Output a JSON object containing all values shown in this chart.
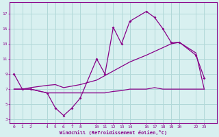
{
  "xlabel": "Windchill (Refroidissement éolien,°C)",
  "bg_color": "#d8f0f0",
  "line_color": "#880088",
  "grid_color": "#b0d8d8",
  "x_ticks": [
    0,
    1,
    2,
    4,
    5,
    6,
    7,
    8,
    10,
    11,
    12,
    13,
    14,
    16,
    17,
    18,
    19,
    20,
    22,
    23
  ],
  "y_ticks": [
    3,
    5,
    7,
    9,
    11,
    13,
    15,
    17
  ],
  "ylim": [
    2.5,
    18.5
  ],
  "xlim": [
    -0.5,
    24.5
  ],
  "line1_x": [
    0,
    1,
    2,
    4,
    5,
    6,
    7,
    8,
    10,
    11,
    12,
    13,
    14,
    16,
    17,
    18,
    19,
    20,
    22,
    23
  ],
  "line1_y": [
    9,
    7,
    7,
    6.5,
    4.5,
    3.5,
    4.5,
    5.8,
    11.0,
    9.0,
    15.2,
    13.0,
    16.0,
    17.3,
    16.5,
    15.0,
    13.2,
    13.2,
    11.5,
    8.5
  ],
  "line2_x": [
    0,
    1,
    2,
    4,
    5,
    6,
    7,
    8,
    10,
    11,
    12,
    13,
    14,
    16,
    17,
    18,
    19,
    20,
    22,
    23
  ],
  "line2_y": [
    7.0,
    7.0,
    7.2,
    7.5,
    7.6,
    7.2,
    7.4,
    7.6,
    8.2,
    8.8,
    9.4,
    10.0,
    10.6,
    11.5,
    12.0,
    12.5,
    13.0,
    13.2,
    11.8,
    7.0
  ],
  "line3_x": [
    0,
    1,
    2,
    4,
    5,
    6,
    8,
    10,
    11,
    12,
    13,
    14,
    16,
    17,
    18,
    19,
    20,
    22,
    23
  ],
  "line3_y": [
    7.0,
    7.0,
    7.0,
    6.5,
    6.5,
    6.5,
    6.5,
    6.5,
    6.5,
    6.7,
    6.8,
    7.0,
    7.0,
    7.2,
    7.0,
    7.0,
    7.0,
    7.0,
    7.0
  ]
}
